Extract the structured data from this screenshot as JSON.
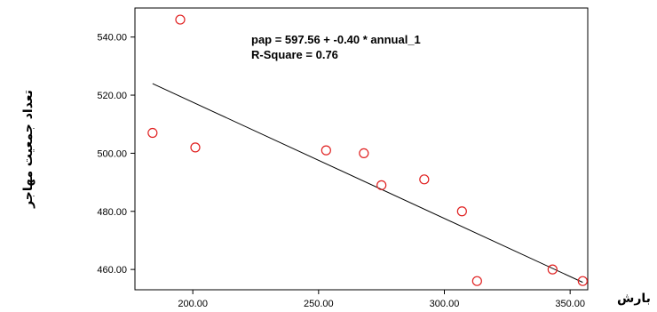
{
  "chart_data": {
    "type": "scatter",
    "title": "",
    "xlabel": "بارش",
    "ylabel": "تعداد جمعیت مهاجر",
    "xlim": [
      177,
      357
    ],
    "ylim": [
      453,
      550
    ],
    "x_ticks": [
      "200.00",
      "250.00",
      "300.00",
      "350.00"
    ],
    "y_ticks": [
      "460.00",
      "480.00",
      "500.00",
      "520.00",
      "540.00"
    ],
    "grid": false,
    "marker_color": "#e02020",
    "line_color": "#000000",
    "points": [
      {
        "x": 184,
        "y": 507
      },
      {
        "x": 195,
        "y": 546
      },
      {
        "x": 201,
        "y": 502
      },
      {
        "x": 253,
        "y": 501
      },
      {
        "x": 268,
        "y": 500
      },
      {
        "x": 275,
        "y": 489
      },
      {
        "x": 292,
        "y": 491
      },
      {
        "x": 307,
        "y": 480
      },
      {
        "x": 313,
        "y": 456
      },
      {
        "x": 343,
        "y": 460
      },
      {
        "x": 355,
        "y": 456
      }
    ],
    "fit_line": {
      "x_start": 184,
      "x_end": 355,
      "intercept": 597.56,
      "slope": -0.4
    },
    "annotations": [
      "pap = 597.56 + -0.40 * annual_1",
      "R-Square = 0.76"
    ]
  }
}
